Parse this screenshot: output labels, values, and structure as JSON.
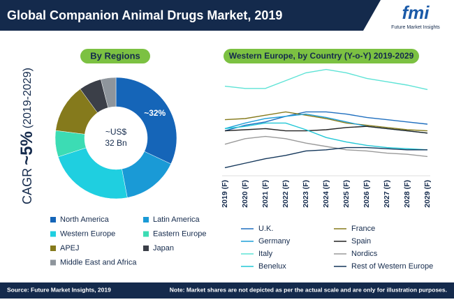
{
  "header": {
    "title": "Global Companion Animal Drugs Market, 2019",
    "logo": "fmi",
    "logo_tagline": "Future Market Insights"
  },
  "cagr": {
    "label": "CAGR",
    "value": "~5%",
    "period": "(2019-2029)"
  },
  "chart_data": [
    {
      "type": "donut",
      "title": "By Regions",
      "categories": [
        "North America",
        "Latin America",
        "Western Europe",
        "Eastern Europe",
        "APEJ",
        "Japan",
        "Middle East and Africa"
      ],
      "values": [
        32,
        15,
        23,
        7,
        13,
        6,
        4
      ],
      "value_labels": [
        "~32%",
        null,
        null,
        null,
        null,
        null,
        null
      ],
      "colors": [
        "#1565b8",
        "#1a9ad6",
        "#1fcfe0",
        "#3cdcb4",
        "#857a1c",
        "#3b3f48",
        "#8e959c"
      ],
      "center_label": [
        "~US$",
        "32 Bn"
      ]
    },
    {
      "type": "line",
      "title": "Western Europe, by Country (Y-o-Y) 2019-2029",
      "x": [
        "2019 (F)",
        "2020 (F)",
        "2021 (F)",
        "2022 (F)",
        "2023 (F)",
        "2024 (F)",
        "2025 (F)",
        "2026 (F)",
        "2027 (F)",
        "2028 (F)",
        "2029 (F)"
      ],
      "ylim": [
        0,
        100
      ],
      "series": [
        {
          "name": "U.K.",
          "color": "#1f6fbf",
          "values": [
            39,
            44,
            47,
            52,
            56,
            56,
            54,
            51,
            49,
            47,
            45
          ]
        },
        {
          "name": "France",
          "color": "#857a1c",
          "values": [
            49,
            50,
            53,
            56,
            53,
            50,
            46,
            44,
            42,
            40,
            39
          ]
        },
        {
          "name": "Germany",
          "color": "#1e9fd8",
          "values": [
            41,
            46,
            50,
            52,
            54,
            51,
            47,
            43,
            41,
            39,
            37
          ]
        },
        {
          "name": "Spain",
          "color": "#222222",
          "values": [
            39,
            40,
            41,
            39,
            39,
            40,
            42,
            43,
            41,
            39,
            37
          ]
        },
        {
          "name": "Italy",
          "color": "#5ee3d6",
          "values": [
            79,
            77,
            77,
            84,
            91,
            94,
            91,
            86,
            83,
            80,
            76
          ]
        },
        {
          "name": "Nordics",
          "color": "#9a9a9a",
          "values": [
            27,
            32,
            34,
            32,
            28,
            25,
            22,
            21,
            19,
            18,
            16
          ]
        },
        {
          "name": "Benelux",
          "color": "#22c7d6",
          "values": [
            41,
            43,
            46,
            46,
            40,
            33,
            29,
            26,
            24,
            23,
            22
          ]
        },
        {
          "name": "Rest of Western Europe",
          "color": "#13365a",
          "values": [
            6,
            10,
            14,
            17,
            21,
            22,
            24,
            24,
            23,
            22,
            22
          ]
        }
      ]
    }
  ],
  "footer": {
    "source": "Source: Future Market Insights, 2019",
    "note": "Note: Market shares are not depicted as per the actual scale and are only for illustration purposes."
  }
}
